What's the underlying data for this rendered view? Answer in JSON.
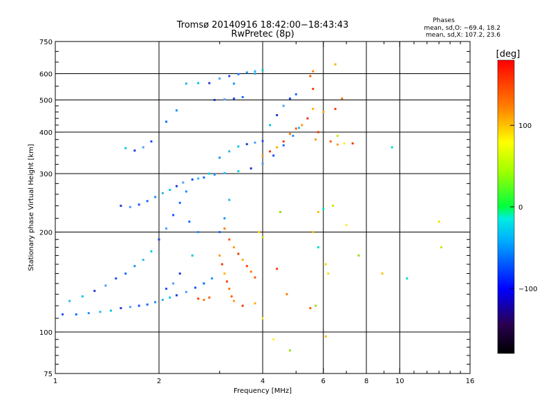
{
  "chart_data": {
    "type": "scatter",
    "title": "Tromsø 20140916 18:42:00−18:43:43",
    "subtitle": "RwPretec (8p)",
    "xlabel": "Frequency [MHz]",
    "ylabel": "Stationary phase Virtual Height [km]",
    "x_scale": "log",
    "y_scale": "log",
    "xlim": [
      1,
      16
    ],
    "ylim": [
      75,
      750
    ],
    "x_ticks": [
      1,
      2,
      4,
      6,
      8,
      10,
      16
    ],
    "x_tick_labels": [
      "1",
      "2",
      "4",
      "6",
      "8",
      "10",
      "16"
    ],
    "y_ticks": [
      75,
      100,
      200,
      300,
      400,
      500,
      600,
      750
    ],
    "y_tick_labels": [
      "75",
      "100",
      "200",
      "300",
      "400",
      "500",
      "600",
      "750"
    ],
    "grid": true,
    "color_variable": "phase [deg]",
    "colorbar": {
      "label": "[deg]",
      "range": [
        -180,
        180
      ],
      "ticks": [
        100,
        0,
        -100
      ],
      "tick_labels": [
        "100",
        "0",
        "−100"
      ]
    },
    "phase_stats": {
      "header": "Phases",
      "o_line": "mean, sd,O: −69.4, 18.2",
      "x_line": "mean, sd,X: 107.2, 23.6"
    },
    "series": [
      {
        "points": [
          [
            1.05,
            113
          ],
          [
            1.15,
            113
          ],
          [
            1.25,
            114
          ],
          [
            1.35,
            115
          ],
          [
            1.45,
            116
          ],
          [
            1.55,
            118
          ],
          [
            1.65,
            119
          ],
          [
            1.75,
            120
          ],
          [
            1.85,
            121
          ],
          [
            1.95,
            123
          ],
          [
            2.05,
            125
          ],
          [
            2.15,
            127
          ],
          [
            2.25,
            129
          ],
          [
            2.4,
            132
          ],
          [
            2.55,
            136
          ],
          [
            2.7,
            140
          ],
          [
            2.85,
            145
          ],
          [
            1.1,
            124
          ],
          [
            1.2,
            128
          ],
          [
            1.3,
            133
          ],
          [
            1.4,
            138
          ],
          [
            1.5,
            145
          ],
          [
            1.6,
            150
          ],
          [
            1.7,
            158
          ],
          [
            1.8,
            165
          ],
          [
            1.9,
            175
          ],
          [
            2.0,
            190
          ],
          [
            2.1,
            205
          ],
          [
            2.2,
            225
          ],
          [
            2.3,
            245
          ],
          [
            2.4,
            265
          ],
          [
            2.6,
            290
          ],
          [
            2.8,
            300
          ],
          [
            1.55,
            240
          ],
          [
            1.65,
            238
          ],
          [
            1.75,
            242
          ],
          [
            1.85,
            248
          ],
          [
            1.95,
            255
          ],
          [
            2.05,
            262
          ],
          [
            2.15,
            268
          ],
          [
            2.25,
            275
          ],
          [
            2.35,
            282
          ],
          [
            2.5,
            288
          ],
          [
            2.7,
            292
          ],
          [
            2.9,
            298
          ],
          [
            3.1,
            301
          ],
          [
            3.4,
            305
          ],
          [
            3.7,
            311
          ],
          [
            4.0,
            322
          ],
          [
            4.3,
            340
          ],
          [
            4.6,
            365
          ],
          [
            4.9,
            390
          ],
          [
            5.1,
            412
          ],
          [
            1.6,
            358
          ],
          [
            1.7,
            352
          ],
          [
            1.8,
            360
          ],
          [
            1.9,
            375
          ],
          [
            2.1,
            430
          ],
          [
            2.25,
            465
          ],
          [
            2.4,
            560
          ],
          [
            2.6,
            562
          ],
          [
            2.8,
            562
          ],
          [
            3.0,
            580
          ],
          [
            3.2,
            590
          ],
          [
            3.4,
            598
          ],
          [
            3.6,
            605
          ],
          [
            3.8,
            610
          ],
          [
            4.0,
            615
          ],
          [
            2.9,
            500
          ],
          [
            3.1,
            502
          ],
          [
            3.3,
            505
          ],
          [
            3.5,
            510
          ],
          [
            3.0,
            335
          ],
          [
            3.2,
            350
          ],
          [
            3.4,
            362
          ],
          [
            3.6,
            368
          ],
          [
            3.8,
            372
          ],
          [
            4.0,
            376
          ],
          [
            3.0,
            200
          ],
          [
            3.1,
            220
          ],
          [
            3.2,
            250
          ],
          [
            4.2,
            420
          ],
          [
            4.4,
            450
          ],
          [
            4.6,
            480
          ],
          [
            4.8,
            505
          ],
          [
            5.0,
            520
          ],
          [
            3.3,
            560
          ],
          [
            3.8,
            600
          ],
          [
            2.5,
            170
          ],
          [
            2.3,
            150
          ],
          [
            2.2,
            140
          ],
          [
            2.1,
            135
          ],
          [
            2.45,
            215
          ],
          [
            2.6,
            200
          ]
        ],
        "color": "blue-cyan (phase ≈ −100 to −30)"
      },
      {
        "points": [
          [
            3.1,
            205
          ],
          [
            3.2,
            190
          ],
          [
            3.3,
            180
          ],
          [
            3.4,
            172
          ],
          [
            3.5,
            165
          ],
          [
            3.6,
            158
          ],
          [
            3.7,
            152
          ],
          [
            3.8,
            146
          ],
          [
            3.0,
            170
          ],
          [
            3.05,
            160
          ],
          [
            3.1,
            150
          ],
          [
            3.15,
            142
          ],
          [
            3.2,
            135
          ],
          [
            3.25,
            128
          ],
          [
            3.3,
            124
          ],
          [
            3.5,
            120
          ],
          [
            3.8,
            122
          ],
          [
            2.6,
            126
          ],
          [
            2.7,
            125
          ],
          [
            2.8,
            127
          ],
          [
            4.0,
            340
          ],
          [
            4.2,
            350
          ],
          [
            4.4,
            360
          ],
          [
            4.6,
            375
          ],
          [
            4.8,
            395
          ],
          [
            5.0,
            410
          ],
          [
            5.2,
            420
          ],
          [
            5.4,
            440
          ],
          [
            5.6,
            470
          ],
          [
            5.6,
            540
          ],
          [
            5.6,
            610
          ],
          [
            5.5,
            590
          ],
          [
            5.7,
            380
          ],
          [
            5.8,
            400
          ],
          [
            6.0,
            460
          ],
          [
            6.5,
            470
          ],
          [
            6.8,
            505
          ],
          [
            6.3,
            375
          ],
          [
            6.6,
            367
          ],
          [
            7.3,
            370
          ],
          [
            6.5,
            640
          ],
          [
            4.4,
            155
          ],
          [
            4.7,
            130
          ],
          [
            5.5,
            118
          ]
        ],
        "color": "orange-red (phase ≈ 80 to 140)"
      },
      {
        "points": [
          [
            3.9,
            200
          ],
          [
            4.0,
            193
          ],
          [
            4.3,
            95
          ],
          [
            4.8,
            88
          ],
          [
            5.6,
            200
          ],
          [
            5.8,
            180
          ],
          [
            6.1,
            160
          ],
          [
            6.6,
            390
          ],
          [
            6.9,
            370
          ],
          [
            7.6,
            170
          ],
          [
            8.9,
            150
          ],
          [
            10.5,
            145
          ],
          [
            13.0,
            215
          ],
          [
            13.2,
            180
          ],
          [
            4.0,
            110
          ],
          [
            4.5,
            230
          ],
          [
            5.8,
            230
          ],
          [
            6.0,
            235
          ],
          [
            6.2,
            150
          ],
          [
            6.4,
            240
          ],
          [
            7.0,
            210
          ],
          [
            5.7,
            120
          ],
          [
            6.1,
            97
          ],
          [
            9.5,
            360
          ]
        ],
        "color": "yellow-green (phase ≈ 30 to 100)"
      }
    ]
  }
}
